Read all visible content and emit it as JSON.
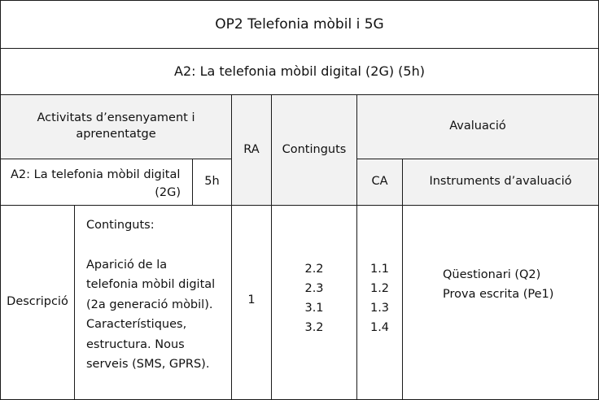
{
  "header": {
    "title": "OP2 Telefonia mòbil i 5G",
    "activity_title": "A2: La telefonia mòbil digital (2G) (5h)"
  },
  "columns": {
    "activitats": "Activitats d’ensenyament i aprenentatge",
    "ra": "RA",
    "continguts": "Continguts",
    "avaluacio": "Avaluació",
    "ca": "CA",
    "instruments": "Instruments d’avaluació"
  },
  "activity_row": {
    "name_line1": "A2: La telefonia mòbil digital",
    "name_line2": "(2G)",
    "hours": "5h"
  },
  "body": {
    "descripcio_label": "Descripció",
    "contents_heading": "Continguts:",
    "contents_lines": [
      "Aparició de la",
      "telefonia mòbil digital",
      "(2a generació mòbil).",
      "Característiques,",
      "estructura. Nous",
      "serveis (SMS, GPRS)."
    ],
    "ra_value": "1",
    "continguts_values": [
      "2.2",
      "2.3",
      "3.1",
      "3.2"
    ],
    "ca_values": [
      "1.1",
      "1.2",
      "1.3",
      "1.4"
    ],
    "instruments": [
      "Qüestionari (Q2)",
      "Prova escrita (Pe1)"
    ]
  }
}
